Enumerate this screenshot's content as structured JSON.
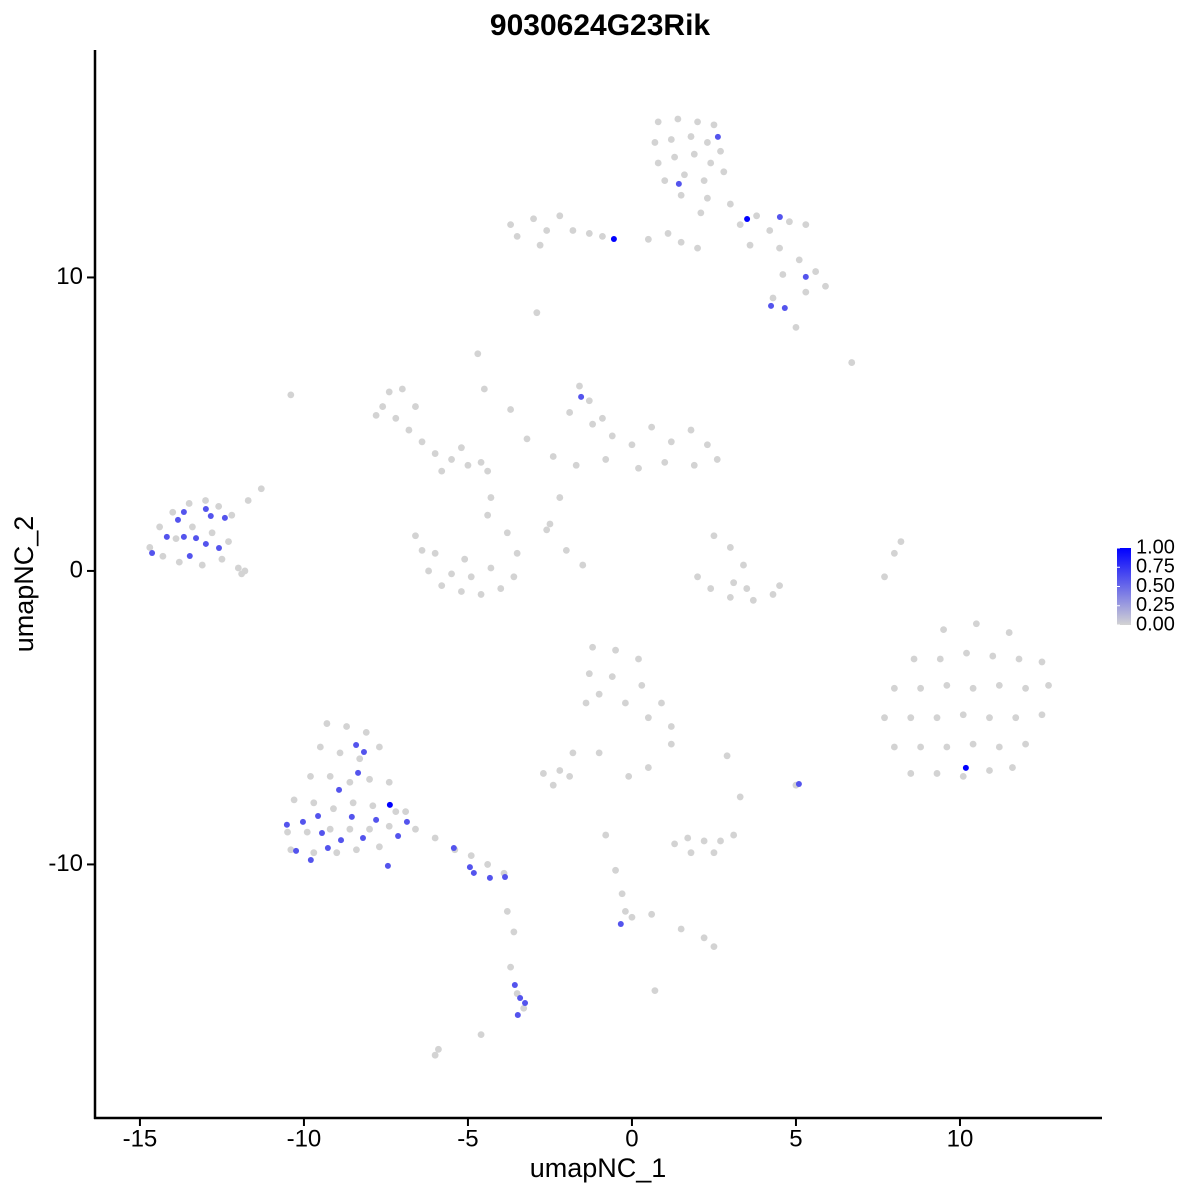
{
  "chart_data": {
    "type": "scatter",
    "title": "9030624G23Rik",
    "x_label": "umapNC_1",
    "y_label": "umapNC_2",
    "xlim": [
      -16.37,
      14.33
    ],
    "ylim": [
      -18.64,
      17.75
    ],
    "xticks": [
      -15,
      -10,
      -5,
      0,
      5,
      10
    ],
    "yticks": [
      -10,
      0,
      10
    ],
    "colorscale": {
      "colors": [
        "#d3d3d3",
        "#0000ff"
      ],
      "ticks": [
        {
          "value": 0,
          "label": "0.00"
        },
        {
          "value": 0.25,
          "label": "0.25"
        },
        {
          "value": 0.5,
          "label": "0.50"
        },
        {
          "value": 0.75,
          "label": "0.75"
        },
        {
          "value": 1,
          "label": "1.00"
        }
      ]
    },
    "series": [
      {
        "color": "#d3d3d3",
        "x": [
          0.8,
          1.4,
          2.0,
          2.5,
          0.7,
          1.2,
          1.8,
          2.3,
          2.7,
          0.8,
          1.3,
          1.9,
          2.4,
          1.0,
          1.6,
          2.2,
          2.8,
          1.5,
          2.3,
          3.0,
          2.1,
          3.3,
          3.8,
          4.2,
          4.8,
          5.3,
          4.5,
          3.6,
          5.1,
          5.6,
          5.9,
          5.3,
          4.6,
          4.3,
          1.1,
          0.5,
          2.0,
          1.5,
          -3.5,
          -3.0,
          -2.6,
          -2.2,
          -1.8,
          -1.3,
          -0.9,
          -2.8,
          -3.7,
          -2.9,
          6.7,
          5.0,
          -7.6,
          -7.4,
          -7.0,
          -7.2,
          -6.8,
          -6.4,
          -6.0,
          -5.5,
          -5.0,
          -4.6,
          -5.8,
          -7.8,
          -6.6,
          -5.2,
          -4.4,
          -4.3,
          -4.4,
          -4.7,
          -4.5,
          -3.7,
          -3.2,
          -10.4,
          -6.4,
          -6.6,
          -6.2,
          -5.8,
          -5.2,
          -4.6,
          -4.0,
          -3.6,
          -3.5,
          -3.8,
          -5.5,
          -4.9,
          -4.3,
          -6.0,
          -5.1,
          -1.6,
          -1.3,
          -1.9,
          -1.2,
          -0.6,
          0,
          0.6,
          1.2,
          1.8,
          2.3,
          2.6,
          1.9,
          1.0,
          0.2,
          -0.8,
          -1.7,
          -2.4,
          -2.2,
          -2.5,
          -0.9,
          -2.6,
          -2.0,
          -1.5,
          -14.7,
          -14.4,
          -14.0,
          -13.5,
          -13.0,
          -12.6,
          -12.2,
          -14.3,
          -13.8,
          -13.1,
          -12.5,
          -12.0,
          -11.8,
          -13.4,
          -12.8,
          -13.9,
          -12.3,
          -11.7,
          -11.3,
          -11.9,
          2.5,
          3.0,
          3.4,
          3.1,
          2.4,
          2.0,
          3.0,
          3.7,
          4.3,
          4.5,
          3.5,
          7.7,
          8.0,
          8.2,
          9.5,
          10.5,
          11.5,
          8.6,
          9.4,
          10.2,
          11.0,
          11.8,
          12.5,
          8.0,
          8.8,
          9.6,
          10.4,
          11.2,
          12.0,
          12.7,
          7.7,
          8.5,
          9.3,
          10.1,
          10.9,
          11.7,
          12.5,
          8.0,
          8.8,
          9.6,
          10.4,
          11.2,
          12.0,
          8.5,
          9.3,
          10.1,
          10.9,
          11.6,
          -1.2,
          -0.5,
          0.2,
          -1.3,
          -0.6,
          0.3,
          0.9,
          -1.0,
          -0.2,
          0.5,
          1.2,
          1.2,
          -1.4,
          -1.8,
          -2.2,
          -2.7,
          -1.9,
          -2.4,
          2.9,
          -1.0,
          0.5,
          -0.1,
          -9.3,
          -8.7,
          -8.1,
          -9.5,
          -8.9,
          -8.3,
          -7.7,
          -9.8,
          -9.2,
          -8.6,
          -8.0,
          -7.4,
          -10.3,
          -9.7,
          -9.1,
          -8.5,
          -7.9,
          -7.2,
          -10.5,
          -9.9,
          -9.2,
          -8.6,
          -8.0,
          -7.4,
          -10.4,
          -9.7,
          -9.0,
          -8.4,
          -7.7,
          -6.6,
          -6.0,
          -5.4,
          -4.9,
          -4.4,
          -3.9,
          -6.9,
          -3.8,
          -3.6,
          -3.7,
          -3.5,
          -3.3,
          1.3,
          1.7,
          2.2,
          2.7,
          3.1,
          1.8,
          2.5,
          3.3,
          5.0,
          -0.8,
          -0.5,
          -0.3,
          -0.2,
          0.0,
          0.6,
          1.5,
          2.2,
          2.5,
          0.7,
          -5.9,
          -6.0,
          -4.6
        ],
        "values": [
          15.3,
          15.4,
          15.3,
          15.2,
          14.6,
          14.7,
          14.8,
          14.6,
          14.3,
          13.9,
          14.1,
          14.2,
          13.9,
          13.3,
          13.5,
          13.3,
          13.6,
          12.8,
          12.7,
          12.5,
          12.2,
          11.8,
          12.1,
          11.6,
          11.9,
          11.8,
          11.0,
          11.1,
          10.6,
          10.2,
          9.7,
          9.5,
          10.1,
          9.3,
          11.5,
          11.3,
          11.0,
          11.2,
          11.4,
          12.0,
          11.6,
          12.1,
          11.6,
          11.5,
          11.4,
          11.1,
          11.8,
          8.8,
          7.1,
          8.3,
          5.6,
          6.1,
          6.2,
          5.2,
          4.8,
          4.4,
          4.0,
          3.8,
          3.6,
          3.7,
          3.4,
          5.3,
          5.6,
          4.2,
          3.4,
          2.5,
          1.9,
          7.4,
          6.2,
          5.5,
          4.5,
          6.0,
          0.7,
          1.2,
          0.0,
          -0.5,
          -0.7,
          -0.8,
          -0.6,
          -0.2,
          0.6,
          1.3,
          -0.1,
          -0.2,
          0.1,
          0.6,
          0.4,
          6.3,
          5.8,
          5.4,
          5.0,
          4.6,
          4.3,
          4.9,
          4.4,
          4.8,
          4.3,
          3.8,
          3.6,
          3.7,
          3.5,
          3.8,
          3.6,
          3.9,
          2.5,
          1.6,
          5.2,
          1.4,
          0.7,
          0.2,
          0.8,
          1.5,
          2.0,
          2.3,
          2.4,
          2.2,
          1.9,
          0.5,
          0.3,
          0.2,
          0.4,
          0.1,
          0.0,
          1.5,
          1.3,
          1.1,
          1.0,
          2.4,
          2.8,
          -0.1,
          1.2,
          0.8,
          0.2,
          -0.4,
          -0.6,
          -0.2,
          -0.9,
          -1.0,
          -0.8,
          -0.5,
          -0.6,
          -0.2,
          0.6,
          1.0,
          -2.0,
          -1.8,
          -2.1,
          -3.0,
          -3.0,
          -2.8,
          -2.9,
          -3.0,
          -3.1,
          -4.0,
          -4.0,
          -3.9,
          -4.0,
          -3.9,
          -4.0,
          -3.9,
          -5.0,
          -5.0,
          -5.0,
          -4.9,
          -5.0,
          -5.0,
          -4.9,
          -6.0,
          -6.0,
          -6.0,
          -5.9,
          -6.0,
          -5.9,
          -6.9,
          -6.9,
          -7.0,
          -6.8,
          -6.7,
          -2.6,
          -2.7,
          -3.0,
          -3.5,
          -3.6,
          -3.9,
          -4.5,
          -4.2,
          -4.5,
          -5.0,
          -5.3,
          -5.9,
          -4.5,
          -6.2,
          -6.8,
          -6.9,
          -7.0,
          -7.3,
          -6.3,
          -6.2,
          -6.7,
          -7.0,
          -5.2,
          -5.3,
          -5.5,
          -6.0,
          -6.2,
          -6.4,
          -6.0,
          -7.0,
          -7.0,
          -7.2,
          -7.1,
          -7.2,
          -7.8,
          -7.9,
          -8.1,
          -7.9,
          -8.0,
          -8.2,
          -8.9,
          -8.9,
          -8.8,
          -8.8,
          -8.8,
          -8.7,
          -9.5,
          -9.6,
          -9.6,
          -9.5,
          -9.4,
          -8.8,
          -9.1,
          -9.5,
          -9.7,
          -10.0,
          -10.3,
          -8.2,
          -11.6,
          -12.3,
          -13.5,
          -14.4,
          -14.9,
          -9.3,
          -9.1,
          -9.2,
          -9.2,
          -9.0,
          -9.6,
          -9.6,
          -7.7,
          -7.3,
          -9.0,
          -10.2,
          -11.0,
          -11.6,
          -11.8,
          -11.7,
          -12.2,
          -12.5,
          -12.8,
          -14.3,
          -16.3,
          -16.5,
          -15.8
        ]
      },
      {
        "x": [
          2.62,
          1.43,
          3.51,
          4.51,
          -0.55,
          5.3,
          4.24,
          4.66,
          -1.55,
          -14.63,
          -14.18,
          -13.84,
          -13.66,
          -13.66,
          -13.29,
          -13.48,
          -12.99,
          -12.84,
          -12.99,
          -12.59,
          -12.41,
          10.18,
          5.09,
          -8.41,
          -8.17,
          -8.93,
          -8.35,
          -7.38,
          -8.54,
          -9.57,
          -10.03,
          -10.52,
          -9.45,
          -10.24,
          -9.79,
          -9.27,
          -8.87,
          -8.2,
          -7.8,
          -7.13,
          -6.86,
          -7.44,
          -5.43,
          -4.94,
          -4.82,
          -4.33,
          -3.87,
          -0.34,
          -3.57,
          -3.41,
          -3.26,
          -3.48
        ],
        "values": [
          14.79,
          13.19,
          11.99,
          12.06,
          11.31,
          10.02,
          9.03,
          8.96,
          5.93,
          0.61,
          1.16,
          1.74,
          2.01,
          1.16,
          1.12,
          0.51,
          2.11,
          1.87,
          0.92,
          0.78,
          1.81,
          -6.71,
          -7.26,
          -5.93,
          -6.17,
          -7.46,
          -6.88,
          -7.97,
          -8.38,
          -8.35,
          -8.55,
          -8.65,
          -8.93,
          -9.54,
          -9.85,
          -9.44,
          -9.17,
          -9.1,
          -8.48,
          -9.03,
          -8.55,
          -10.05,
          -9.44,
          -10.09,
          -10.29,
          -10.46,
          -10.43,
          -12.03,
          -14.11,
          -14.55,
          -14.72,
          -15.13
        ],
        "expression": [
          0.6,
          0.6,
          1,
          0.6,
          1,
          0.6,
          0.6,
          0.6,
          0.6,
          0.6,
          0.6,
          0.6,
          0.6,
          0.6,
          0.6,
          0.6,
          0.6,
          0.6,
          0.6,
          0.6,
          0.6,
          1,
          0.6,
          0.6,
          0.6,
          0.6,
          0.6,
          1,
          0.6,
          0.6,
          0.6,
          0.6,
          0.6,
          0.6,
          0.6,
          0.6,
          0.6,
          0.6,
          0.6,
          0.6,
          0.6,
          0.6,
          0.6,
          0.6,
          0.6,
          0.6,
          0.6,
          0.6,
          0.6,
          0.6,
          0.6,
          0.6
        ]
      }
    ]
  }
}
